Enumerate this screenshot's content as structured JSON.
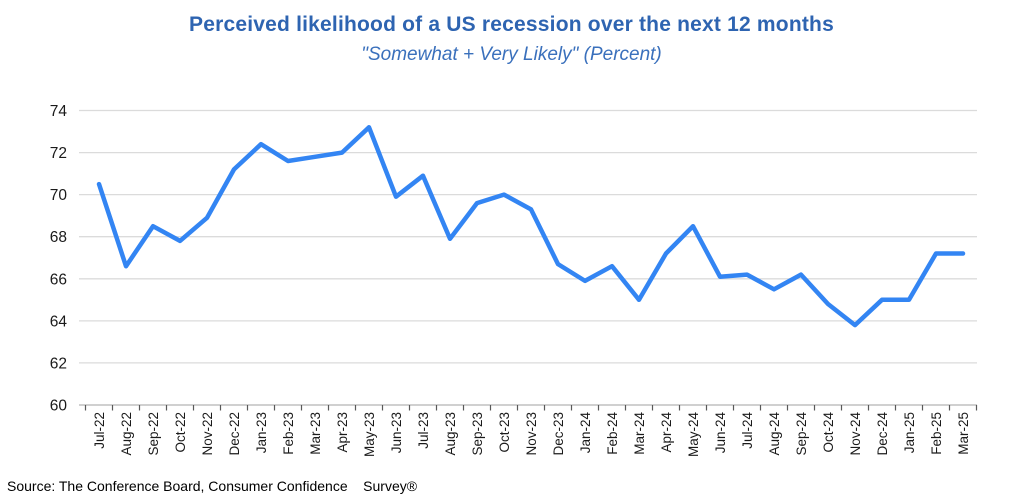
{
  "page": {
    "source_note": "Source: The Conference Board, Consumer Confidence    Survey®"
  },
  "chart_data": {
    "type": "line",
    "title": "Perceived likelihood of a US recession over the next 12 months",
    "subtitle": "\"Somewhat + Very Likely\" (Percent)",
    "xlabel": "",
    "ylabel": "",
    "ylim": [
      60,
      74
    ],
    "ytick_step": 2,
    "grid": true,
    "legend": "none",
    "categories": [
      "Jul-22",
      "Aug-22",
      "Sep-22",
      "Oct-22",
      "Nov-22",
      "Dec-22",
      "Jan-23",
      "Feb-23",
      "Mar-23",
      "Apr-23",
      "May-23",
      "Jun-23",
      "Jul-23",
      "Aug-23",
      "Sep-23",
      "Oct-23",
      "Nov-23",
      "Dec-23",
      "Jan-24",
      "Feb-24",
      "Mar-24",
      "Apr-24",
      "May-24",
      "Jun-24",
      "Jul-24",
      "Aug-24",
      "Sep-24",
      "Oct-24",
      "Nov-24",
      "Dec-24",
      "Jan-25",
      "Feb-25",
      "Mar-25"
    ],
    "series": [
      {
        "name": "Somewhat + Very Likely (Percent)",
        "values": [
          70.5,
          66.6,
          68.5,
          67.8,
          68.9,
          71.2,
          72.4,
          71.6,
          71.8,
          72.0,
          73.2,
          69.9,
          70.9,
          67.9,
          69.6,
          70.0,
          69.3,
          66.7,
          65.9,
          66.6,
          65.0,
          67.2,
          68.5,
          66.1,
          66.2,
          65.5,
          66.2,
          64.8,
          63.8,
          65.0,
          65.0,
          67.2,
          67.2
        ]
      }
    ],
    "colors": {
      "line": "#3385F3",
      "title": "#2E64B1",
      "subtitle": "#3A70BC",
      "gridline": "#DBDBDB",
      "axis_line": "#B5B5B5",
      "tick": "#595959",
      "label_text": "#1A1A1A"
    }
  }
}
